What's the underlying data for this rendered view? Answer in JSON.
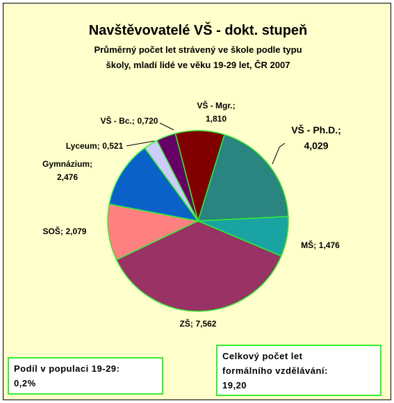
{
  "chart_data": {
    "type": "pie",
    "title": "Navštěvovatelé VŠ - dokt. stupeň",
    "subtitle": [
      "Průměrný počet let strávený ve škole podle typu",
      "školy, mladí lidé ve věku 19-29 let, ČR 2007"
    ],
    "categories": [
      "VŠ - Ph.D.;",
      "MŠ;",
      "ZŠ;",
      "SOŠ;",
      "Gymnázium;",
      "Lyceum;",
      "VŠ - Bc.;",
      "VŠ - Mgr.;"
    ],
    "values": [
      4.029,
      1.476,
      7.562,
      2.079,
      2.476,
      0.521,
      0.72,
      1.81
    ],
    "value_labels": [
      "4,029",
      "1,476",
      "7,562",
      "2,079",
      "2,476",
      "0,521",
      "0,720",
      "1,810"
    ],
    "colors": [
      "#2a8580",
      "#1aa3a3",
      "#993366",
      "#ff8080",
      "#0a62c8",
      "#ccccff",
      "#660066",
      "#800000"
    ],
    "annotations": [
      {
        "lines": [
          "Podíl v populaci 19-29:",
          "0,2%"
        ]
      },
      {
        "lines": [
          "Celkový počet let",
          "formálního vzdělávání:",
          "19,20"
        ]
      }
    ]
  }
}
